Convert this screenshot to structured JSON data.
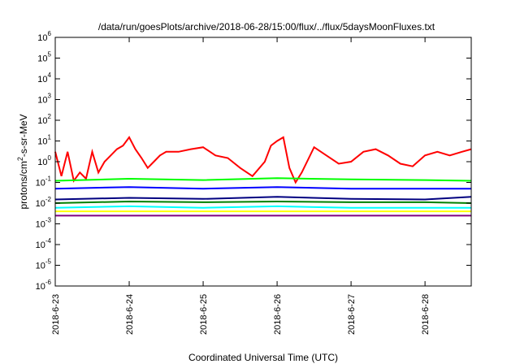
{
  "chart_data": {
    "type": "line",
    "title": "/data/run/goesPlots/archive/2018-06-28/15:00/flux/../flux/5daysMoonFluxes.txt",
    "xlabel": "Coordinated Universal Time (UTC)",
    "ylabel": "protons/cm2-s-sr-MeV",
    "y_scale": "log",
    "ylim": [
      1e-06,
      1000000.0
    ],
    "xlim": [
      "2018-06-23T00:00",
      "2018-06-28T15:00"
    ],
    "y_ticks": [
      {
        "mant": "10",
        "exp": "-6"
      },
      {
        "mant": "10",
        "exp": "-5"
      },
      {
        "mant": "10",
        "exp": "-4"
      },
      {
        "mant": "10",
        "exp": "-3"
      },
      {
        "mant": "10",
        "exp": "-2"
      },
      {
        "mant": "10",
        "exp": "-1"
      },
      {
        "mant": "10",
        "exp": "0"
      },
      {
        "mant": "10",
        "exp": "1"
      },
      {
        "mant": "10",
        "exp": "2"
      },
      {
        "mant": "10",
        "exp": "3"
      },
      {
        "mant": "10",
        "exp": "4"
      },
      {
        "mant": "10",
        "exp": "5"
      },
      {
        "mant": "10",
        "exp": "6"
      }
    ],
    "x_ticks": [
      "2018-6-23",
      "2018-6-24",
      "2018-6-25",
      "2018-6-26",
      "2018-6-27",
      "2018-6-28"
    ],
    "grid": false,
    "legend": "none",
    "series": [
      {
        "color": "#ff0000",
        "x": [
          "2018-06-23T00:00",
          "2018-06-23T02:00",
          "2018-06-23T04:00",
          "2018-06-23T06:00",
          "2018-06-23T08:00",
          "2018-06-23T10:00",
          "2018-06-23T12:00",
          "2018-06-23T14:00",
          "2018-06-23T16:00",
          "2018-06-23T18:00",
          "2018-06-23T20:00",
          "2018-06-23T22:00",
          "2018-06-24T00:00",
          "2018-06-24T02:00",
          "2018-06-24T04:00",
          "2018-06-24T06:00",
          "2018-06-24T08:00",
          "2018-06-24T10:00",
          "2018-06-24T12:00",
          "2018-06-24T16:00",
          "2018-06-24T20:00",
          "2018-06-25T00:00",
          "2018-06-25T04:00",
          "2018-06-25T08:00",
          "2018-06-25T12:00",
          "2018-06-25T16:00",
          "2018-06-25T20:00",
          "2018-06-25T22:00",
          "2018-06-26T00:00",
          "2018-06-26T02:00",
          "2018-06-26T04:00",
          "2018-06-26T06:00",
          "2018-06-26T08:00",
          "2018-06-26T12:00",
          "2018-06-26T16:00",
          "2018-06-26T20:00",
          "2018-06-27T00:00",
          "2018-06-27T04:00",
          "2018-06-27T08:00",
          "2018-06-27T12:00",
          "2018-06-27T16:00",
          "2018-06-27T20:00",
          "2018-06-28T00:00",
          "2018-06-28T04:00",
          "2018-06-28T08:00",
          "2018-06-28T12:00",
          "2018-06-28T15:00"
        ],
        "y": [
          3,
          0.2,
          3,
          0.12,
          0.3,
          0.15,
          3,
          0.3,
          1,
          2,
          4,
          6,
          15,
          4,
          1.5,
          0.5,
          1,
          2,
          3,
          3,
          4,
          5,
          2,
          1.5,
          0.5,
          0.2,
          1,
          6,
          10,
          15,
          0.5,
          0.1,
          0.3,
          5,
          2,
          0.8,
          1,
          3,
          4,
          2,
          0.8,
          0.6,
          2,
          3,
          2,
          3,
          4
        ]
      },
      {
        "color": "#00ff00",
        "x": [
          "2018-06-23T00:00",
          "2018-06-24T00:00",
          "2018-06-25T00:00",
          "2018-06-26T00:00",
          "2018-06-27T00:00",
          "2018-06-28T00:00",
          "2018-06-28T15:00"
        ],
        "y": [
          0.12,
          0.15,
          0.13,
          0.16,
          0.14,
          0.13,
          0.12
        ]
      },
      {
        "color": "#0000ff",
        "x": [
          "2018-06-23T00:00",
          "2018-06-24T00:00",
          "2018-06-25T00:00",
          "2018-06-26T00:00",
          "2018-06-27T00:00",
          "2018-06-28T00:00",
          "2018-06-28T15:00"
        ],
        "y": [
          0.05,
          0.06,
          0.05,
          0.06,
          0.05,
          0.05,
          0.05
        ]
      },
      {
        "color": "#00ffff",
        "x": [
          "2018-06-23T00:00",
          "2018-06-24T00:00",
          "2018-06-25T00:00",
          "2018-06-26T00:00",
          "2018-06-27T00:00",
          "2018-06-28T00:00",
          "2018-06-28T15:00"
        ],
        "y": [
          0.006,
          0.007,
          0.006,
          0.007,
          0.006,
          0.006,
          0.006
        ]
      },
      {
        "color": "#008000",
        "x": [
          "2018-06-23T00:00",
          "2018-06-24T00:00",
          "2018-06-25T00:00",
          "2018-06-26T00:00",
          "2018-06-27T00:00",
          "2018-06-28T00:00",
          "2018-06-28T15:00"
        ],
        "y": [
          0.01,
          0.012,
          0.011,
          0.012,
          0.011,
          0.011,
          0.01
        ]
      },
      {
        "color": "#000080",
        "x": [
          "2018-06-23T00:00",
          "2018-06-24T00:00",
          "2018-06-25T00:00",
          "2018-06-26T00:00",
          "2018-06-27T00:00",
          "2018-06-28T00:00",
          "2018-06-28T15:00"
        ],
        "y": [
          0.015,
          0.018,
          0.016,
          0.02,
          0.016,
          0.015,
          0.02
        ]
      },
      {
        "color": "#ffff00",
        "x": [
          "2018-06-23T00:00",
          "2018-06-24T00:00",
          "2018-06-25T00:00",
          "2018-06-26T00:00",
          "2018-06-27T00:00",
          "2018-06-28T00:00",
          "2018-06-28T15:00"
        ],
        "y": [
          0.004,
          0.004,
          0.004,
          0.004,
          0.004,
          0.004,
          0.004
        ]
      },
      {
        "color": "#800080",
        "x": [
          "2018-06-23T00:00",
          "2018-06-24T00:00",
          "2018-06-25T00:00",
          "2018-06-26T00:00",
          "2018-06-27T00:00",
          "2018-06-28T00:00",
          "2018-06-28T15:00"
        ],
        "y": [
          0.0025,
          0.0025,
          0.0025,
          0.0025,
          0.0025,
          0.0025,
          0.0025
        ]
      }
    ]
  }
}
